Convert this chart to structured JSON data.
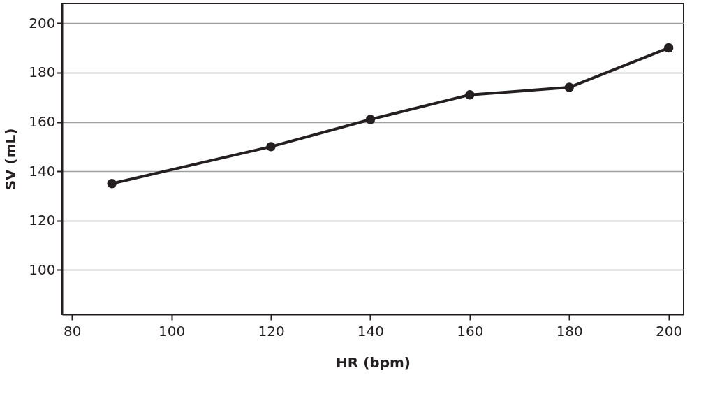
{
  "chart_data": {
    "type": "line",
    "xlabel": "HR (bpm)",
    "ylabel": "SV (mL)",
    "x": [
      88,
      120,
      140,
      160,
      180,
      200
    ],
    "series": [
      {
        "color": "#231f20",
        "values": [
          135,
          150,
          161,
          171,
          174,
          190
        ]
      }
    ],
    "xlim": [
      78,
      203
    ],
    "xticks": [
      80,
      100,
      120,
      140,
      160,
      180,
      200
    ],
    "ylim": [
      82,
      208
    ],
    "yticks": [
      100,
      120,
      140,
      160,
      180,
      200
    ],
    "grid": "y",
    "marker": "circle",
    "line_style": "solid",
    "legend": false
  }
}
